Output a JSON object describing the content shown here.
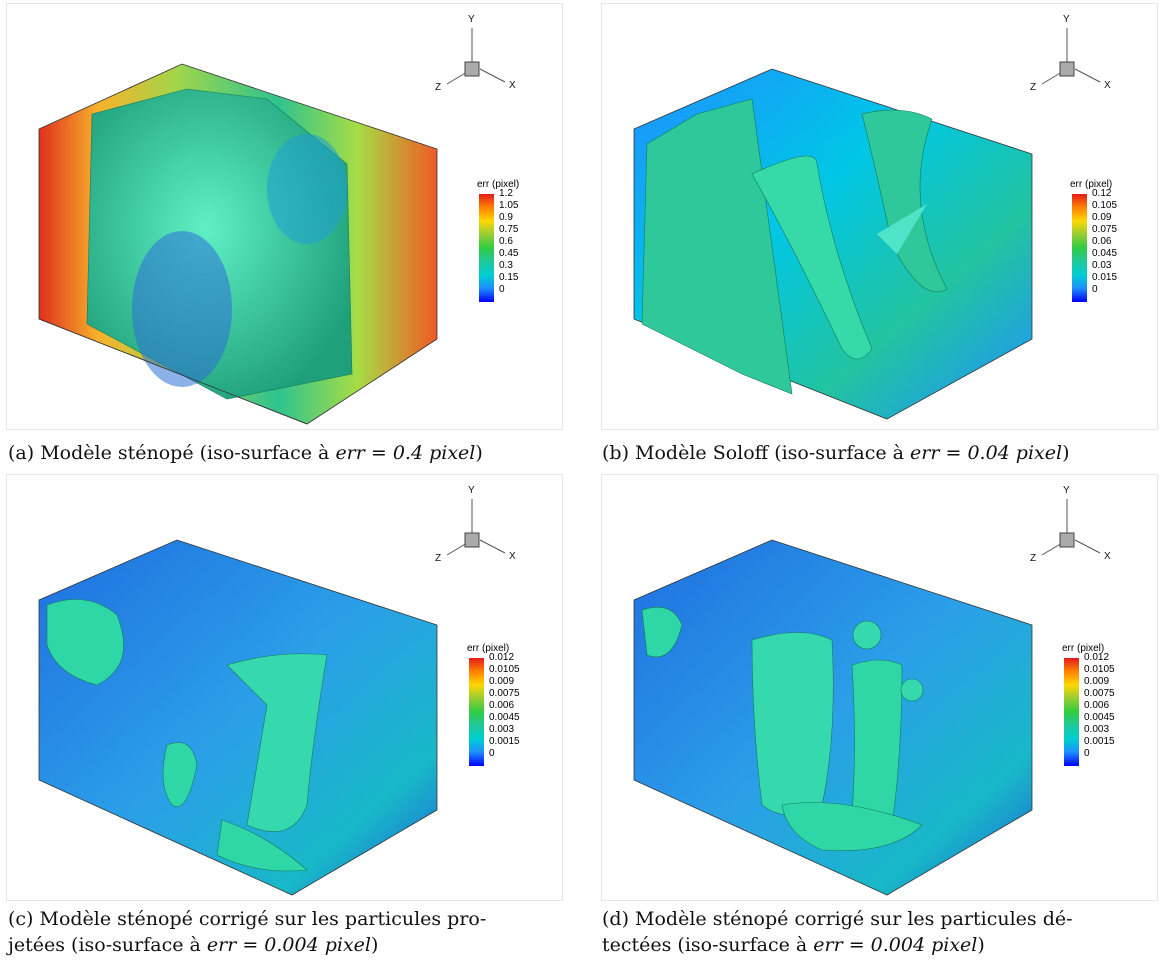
{
  "panels": [
    {
      "legend_title": "err (pixel)",
      "ticks": [
        "1.2",
        "1.05",
        "0.9",
        "0.75",
        "0.6",
        "0.45",
        "0.3",
        "0.15",
        "0"
      ],
      "axes": {
        "y": "Y",
        "x": "X",
        "z": "Z"
      },
      "caption_pre": "(a) Modèle sténopé (iso-surface à ",
      "caption_math": "err = 0.4 pixel",
      "caption_post": ")"
    },
    {
      "legend_title": "err (pixel)",
      "ticks": [
        "0.12",
        "0.105",
        "0.09",
        "0.075",
        "0.06",
        "0.045",
        "0.03",
        "0.015",
        "0"
      ],
      "axes": {
        "y": "Y",
        "x": "X",
        "z": "Z"
      },
      "caption_pre": "(b) Modèle Soloff (iso-surface à ",
      "caption_math": "err = 0.04 pixel",
      "caption_post": ")"
    },
    {
      "legend_title": "err (pixel)",
      "ticks": [
        "0.012",
        "0.0105",
        "0.009",
        "0.0075",
        "0.006",
        "0.0045",
        "0.003",
        "0.0015",
        "0"
      ],
      "axes": {
        "y": "Y",
        "x": "X",
        "z": "Z"
      },
      "caption_line1": "(c) Modèle sténopé corrigé sur les particules pro-",
      "caption_pre": "jetées (iso-surface à ",
      "caption_math": "err = 0.004 pixel",
      "caption_post": ")"
    },
    {
      "legend_title": "err (pixel)",
      "ticks": [
        "0.012",
        "0.0105",
        "0.009",
        "0.0075",
        "0.006",
        "0.0045",
        "0.003",
        "0.0015",
        "0"
      ],
      "axes": {
        "y": "Y",
        "x": "X",
        "z": "Z"
      },
      "caption_line1": "(d) Modèle sténopé corrigé sur les particules dé-",
      "caption_pre": "tectées (iso-surface à ",
      "caption_math": "err = 0.004 pixel",
      "caption_post": ")"
    }
  ],
  "colors": {
    "isosurface": "#2fd6a6",
    "colorbar_top": "#e31a1c",
    "colorbar_bottom": "#0000ff"
  }
}
